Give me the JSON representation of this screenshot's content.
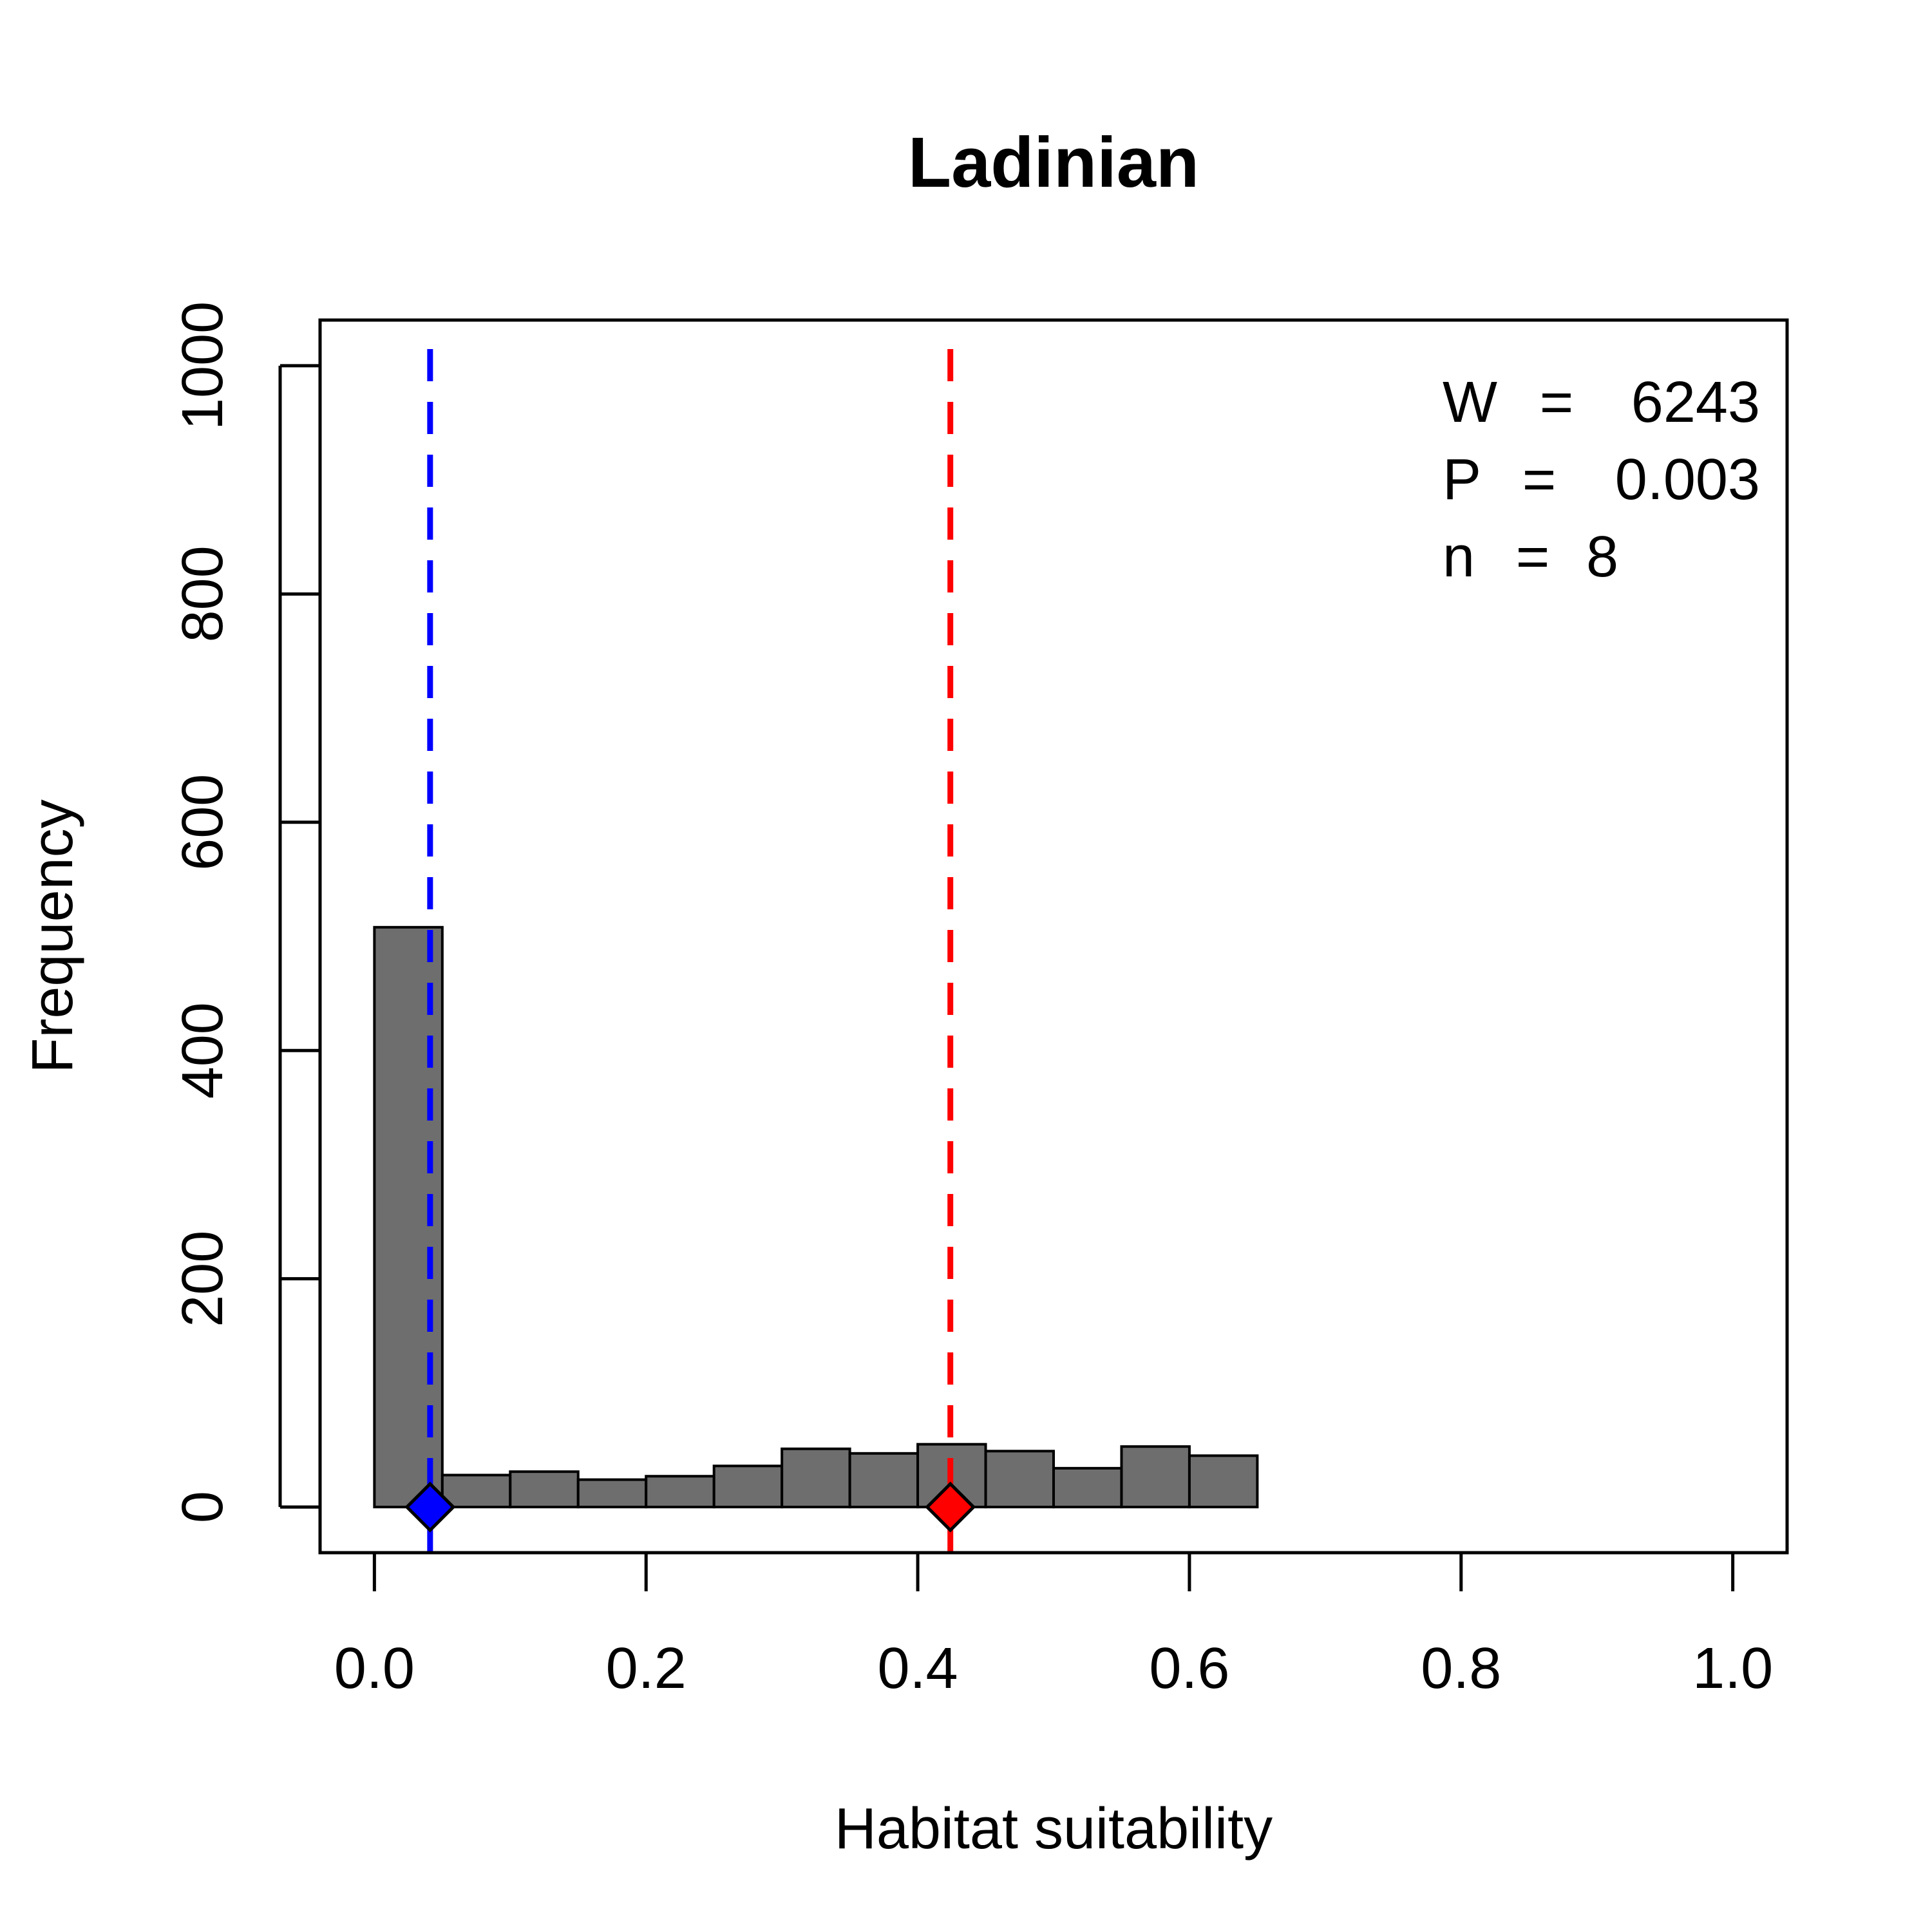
{
  "chart_data": {
    "type": "bar",
    "title": "Ladinian",
    "xlabel": "Habitat suitability",
    "ylabel": "Frequency",
    "xlim": [
      -0.04,
      1.04
    ],
    "ylim": [
      -40,
      1040
    ],
    "x_ticks": [
      "0.0",
      "0.2",
      "0.4",
      "0.6",
      "0.8",
      "1.0"
    ],
    "x_tick_values": [
      0.0,
      0.2,
      0.4,
      0.6,
      0.8,
      1.0
    ],
    "y_ticks": [
      "0",
      "200",
      "400",
      "600",
      "800",
      "1000"
    ],
    "y_tick_values": [
      0,
      200,
      400,
      600,
      800,
      1000
    ],
    "bins": [
      {
        "x0": 0.0,
        "x1": 0.05,
        "count": 508
      },
      {
        "x0": 0.05,
        "x1": 0.1,
        "count": 28
      },
      {
        "x0": 0.1,
        "x1": 0.15,
        "count": 31
      },
      {
        "x0": 0.15,
        "x1": 0.2,
        "count": 24
      },
      {
        "x0": 0.2,
        "x1": 0.25,
        "count": 27
      },
      {
        "x0": 0.25,
        "x1": 0.3,
        "count": 36
      },
      {
        "x0": 0.3,
        "x1": 0.35,
        "count": 51
      },
      {
        "x0": 0.35,
        "x1": 0.4,
        "count": 47
      },
      {
        "x0": 0.4,
        "x1": 0.45,
        "count": 55
      },
      {
        "x0": 0.45,
        "x1": 0.5,
        "count": 49
      },
      {
        "x0": 0.5,
        "x1": 0.55,
        "count": 34
      },
      {
        "x0": 0.55,
        "x1": 0.6,
        "count": 53
      },
      {
        "x0": 0.6,
        "x1": 0.65,
        "count": 45
      }
    ],
    "bar_color": "#6e6e6e",
    "reference_lines": [
      {
        "x": 0.041,
        "color": "#0000ff"
      },
      {
        "x": 0.424,
        "color": "#ff0000"
      }
    ],
    "stats": {
      "w_label": "W",
      "w_value": "6243",
      "p_label": "P",
      "p_value": "0.003",
      "n_label": "n",
      "n_value": "8"
    },
    "grid": false
  }
}
